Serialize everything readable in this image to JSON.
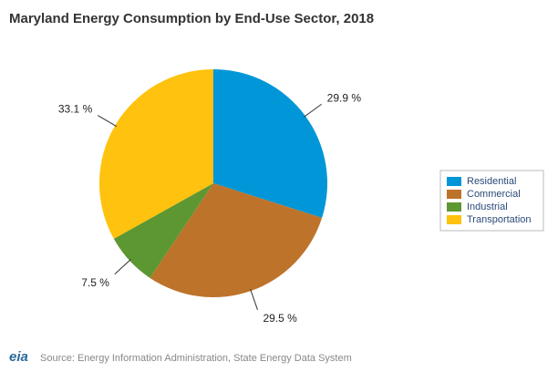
{
  "chart_data": {
    "type": "pie",
    "title": "Maryland Energy Consumption by End-Use Sector, 2018",
    "categories": [
      "Residential",
      "Commercial",
      "Industrial",
      "Transportation"
    ],
    "values": [
      29.9,
      29.5,
      7.5,
      33.1
    ],
    "value_labels": [
      "29.9 %",
      "29.5 %",
      "7.5 %",
      "33.1 %"
    ],
    "colors": [
      "#0096d7",
      "#bd732a",
      "#5d9732",
      "#ffc20e"
    ],
    "legend": "right",
    "source": "Source: Energy Information Administration, State Energy Data System",
    "logo": "eia"
  }
}
